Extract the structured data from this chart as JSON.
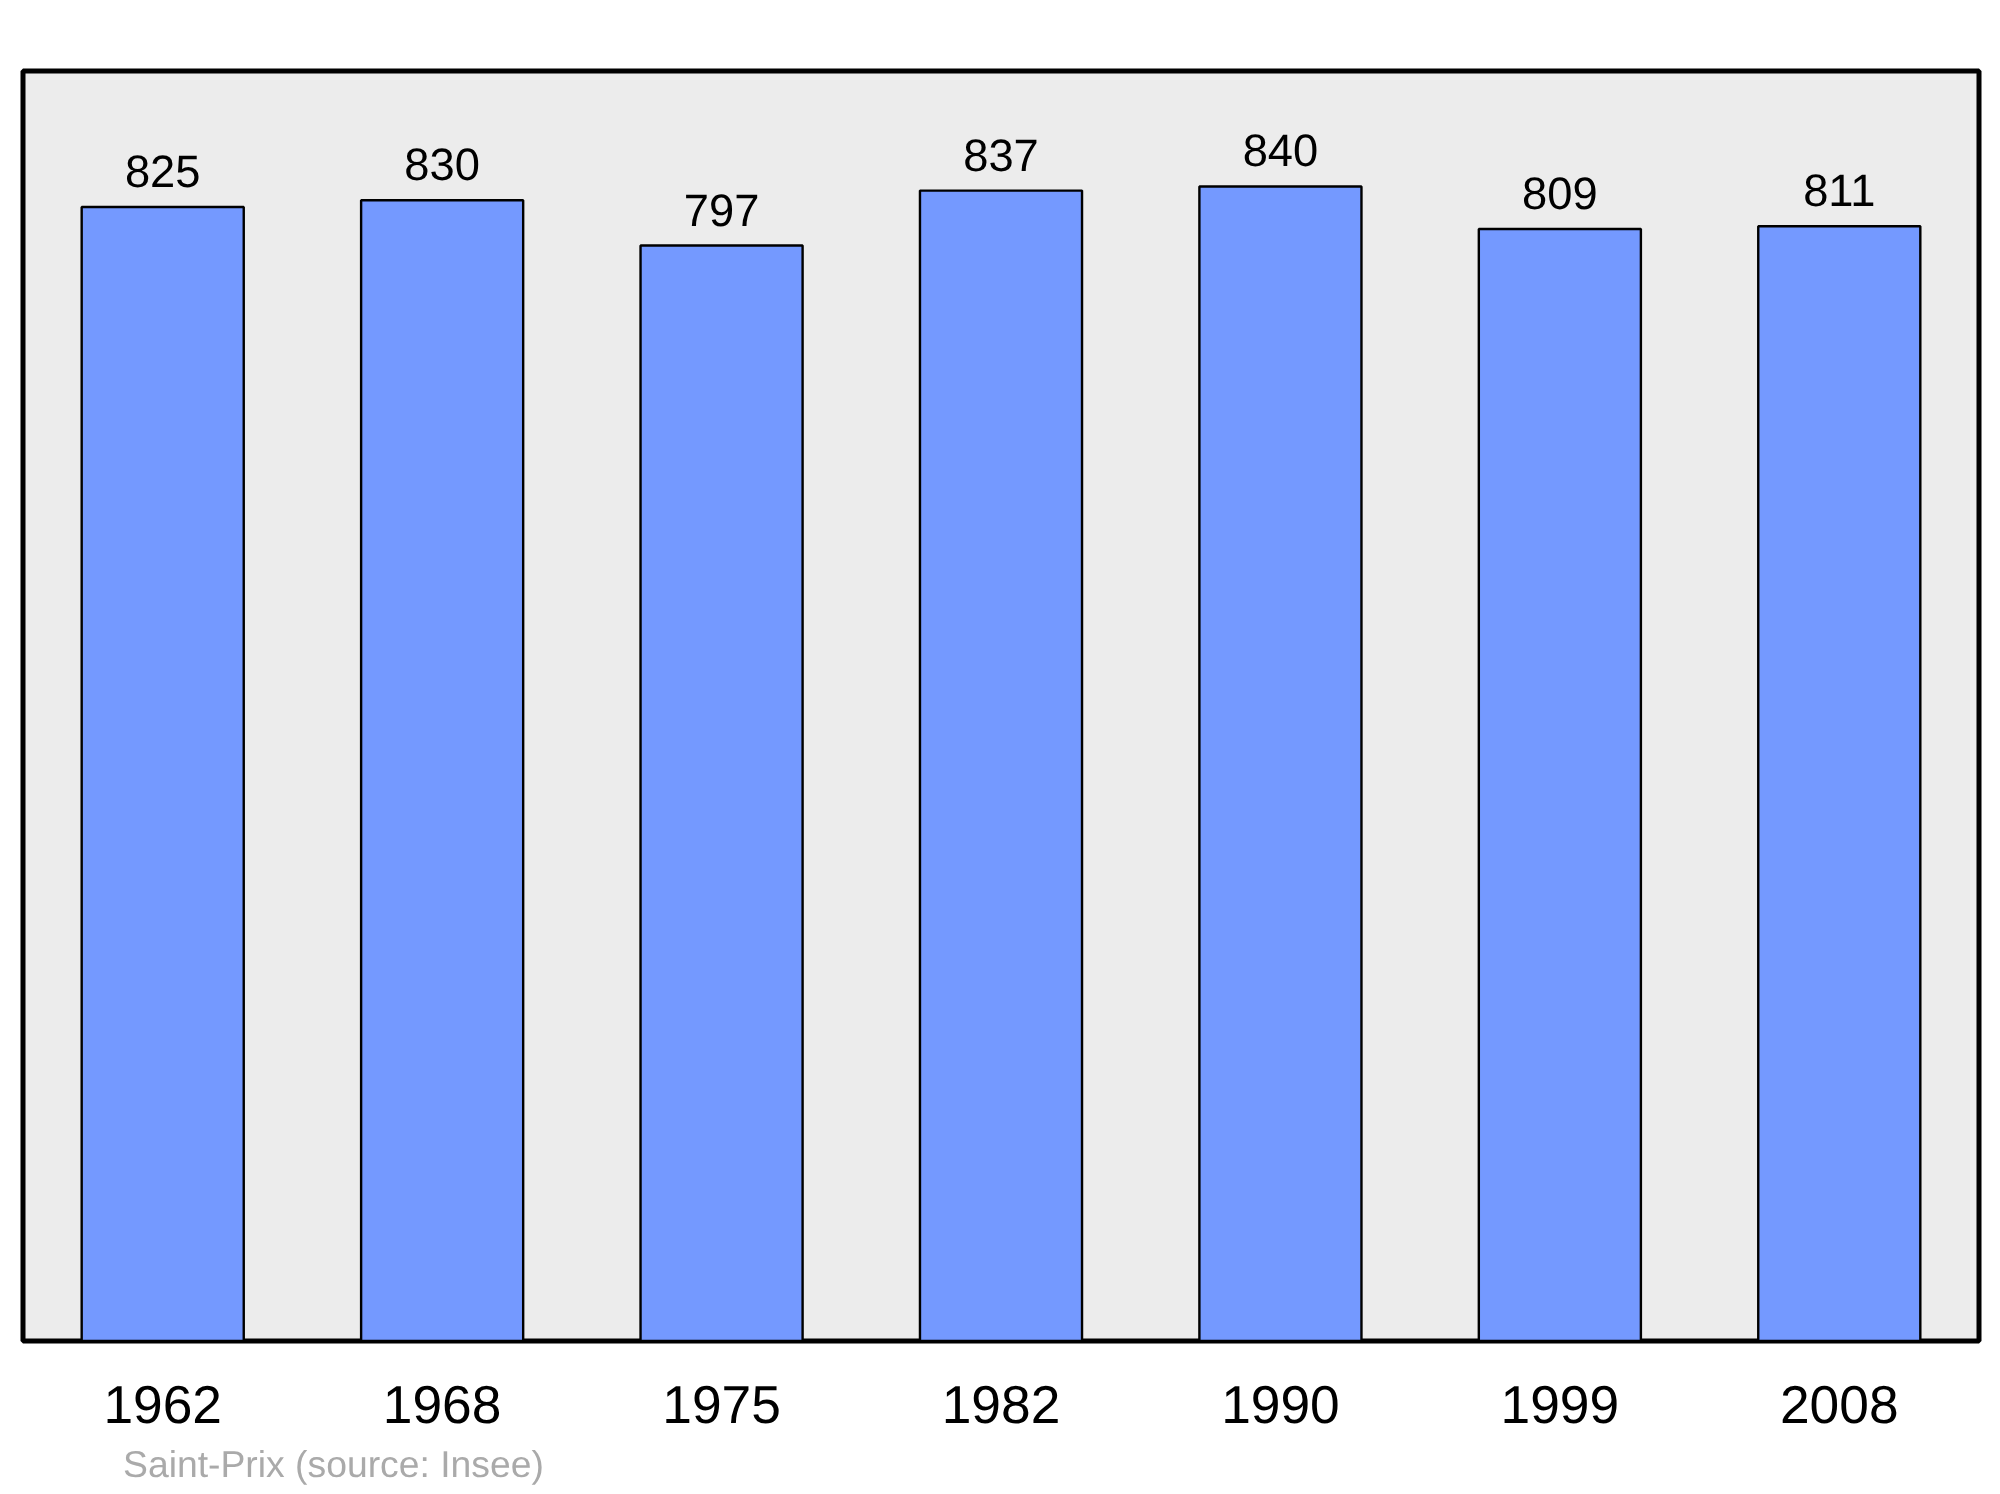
{
  "chart_data": {
    "type": "bar",
    "categories": [
      "1962",
      "1968",
      "1975",
      "1982",
      "1990",
      "1999",
      "2008"
    ],
    "values": [
      825,
      830,
      797,
      837,
      840,
      809,
      811
    ],
    "color": "#7499ff",
    "data_labels": true,
    "grid": false,
    "annotations": [
      "Saint-Prix    (source: Insee)"
    ]
  }
}
